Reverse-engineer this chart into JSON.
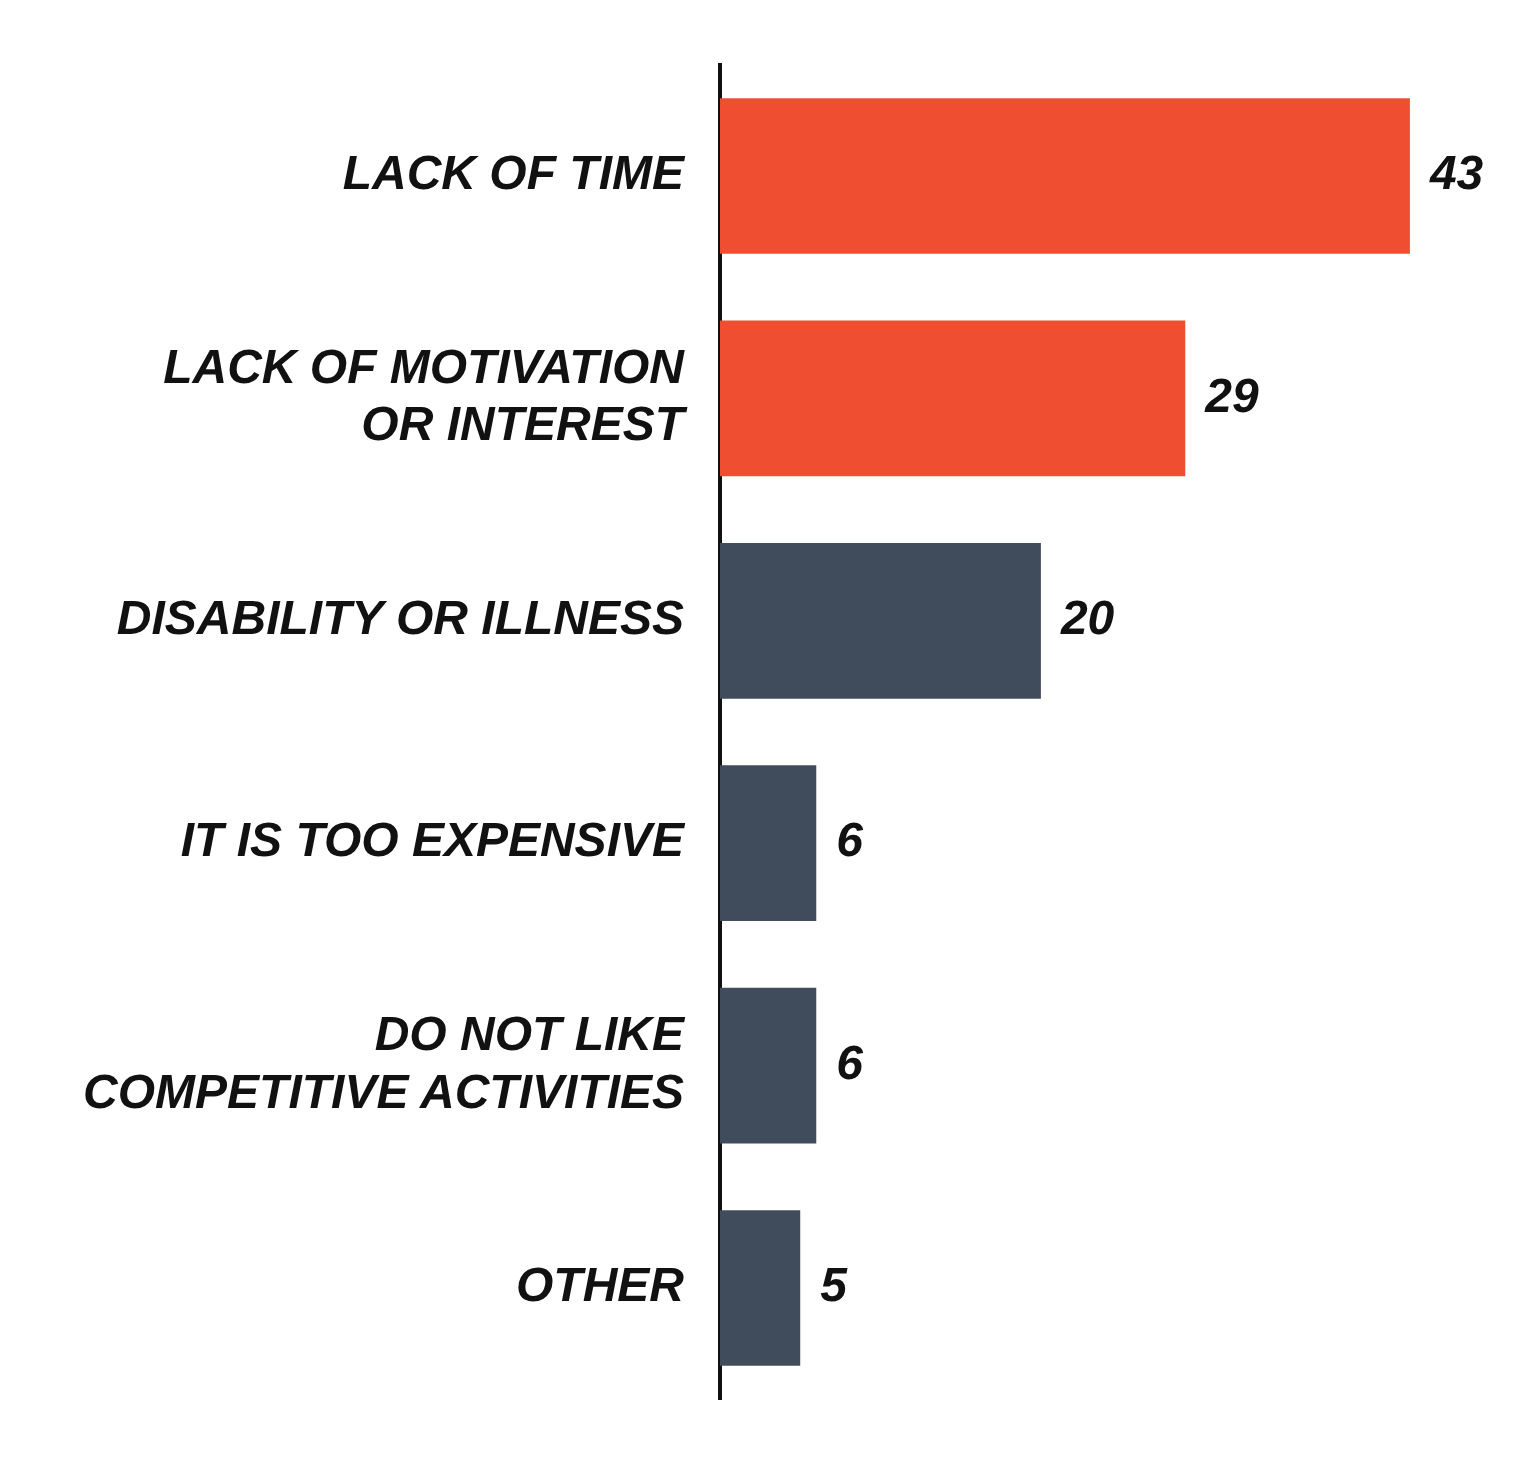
{
  "chart_data": {
    "type": "bar",
    "orientation": "horizontal",
    "categories": [
      "LACK OF TIME",
      "LACK OF MOTIVATION\nOR INTEREST",
      "DISABILITY OR ILLNESS",
      "IT IS TOO EXPENSIVE",
      "DO NOT LIKE\nCOMPETITIVE ACTIVITIES",
      "OTHER"
    ],
    "values": [
      43,
      29,
      20,
      6,
      6,
      5
    ],
    "colors": [
      "#f04e30",
      "#f04e30",
      "#404c5c",
      "#404c5c",
      "#404c5c",
      "#404c5c"
    ],
    "data_labels": true,
    "tick_labels": "y"
  }
}
